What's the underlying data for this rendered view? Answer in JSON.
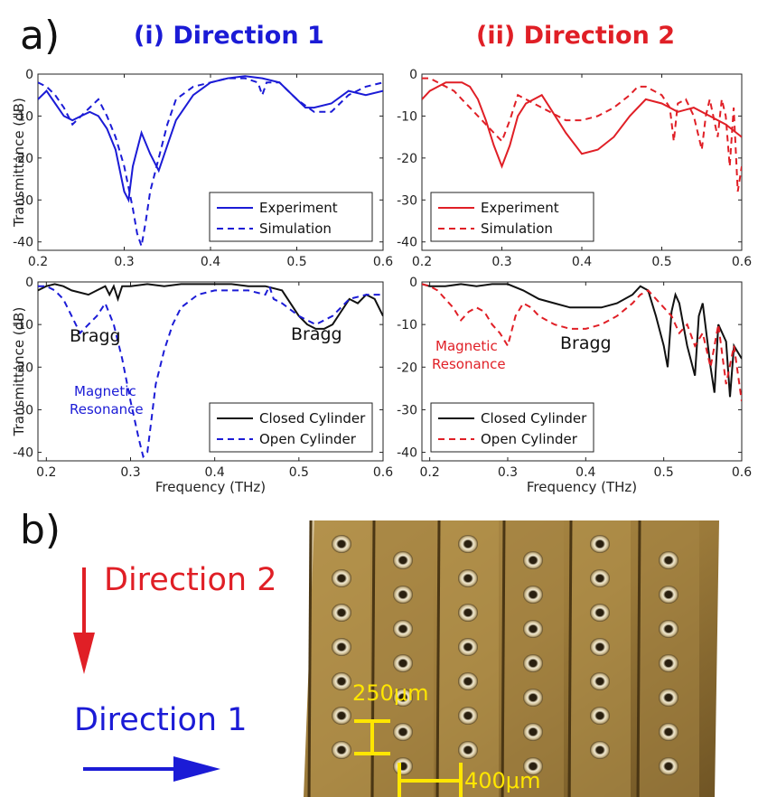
{
  "panel_a_label": "a)",
  "panel_b_label": "b)",
  "column_titles": {
    "left": "(i) Direction 1",
    "right": "(ii) Direction 2"
  },
  "colors": {
    "blue": "#1b1bd6",
    "red": "#e01f26",
    "black": "#111111",
    "yellow": "#ffe600"
  },
  "photo_annotations": {
    "direction2": "Direction 2",
    "direction1": "Direction 1",
    "scale_vertical": "250μm",
    "scale_horizontal": "400μm"
  },
  "chart_data": [
    {
      "id": "top-left",
      "type": "line",
      "ylabel": "Transmittance (dB)",
      "xlabel": "",
      "xlim": [
        0.2,
        0.6
      ],
      "ylim": [
        -42,
        0
      ],
      "xticks": [
        "0.2",
        "0.3",
        "0.4",
        "0.5",
        "0.6"
      ],
      "yticks": [
        "0",
        "-10",
        "-20",
        "-30",
        "-40"
      ],
      "legend_position": "lower-right",
      "annotations": [],
      "series": [
        {
          "name": "Experiment",
          "style": "solid",
          "color": "#1b1bd6",
          "x": [
            0.2,
            0.21,
            0.22,
            0.23,
            0.24,
            0.25,
            0.26,
            0.27,
            0.28,
            0.29,
            0.3,
            0.305,
            0.31,
            0.32,
            0.33,
            0.34,
            0.35,
            0.36,
            0.38,
            0.4,
            0.42,
            0.44,
            0.46,
            0.48,
            0.5,
            0.51,
            0.52,
            0.54,
            0.56,
            0.58,
            0.6
          ],
          "y": [
            -6,
            -4,
            -7,
            -10,
            -11,
            -10,
            -9,
            -10,
            -13,
            -18,
            -28,
            -30,
            -22,
            -14,
            -19,
            -23,
            -17,
            -11,
            -5,
            -2,
            -1,
            -0.5,
            -1,
            -2,
            -6,
            -8,
            -8,
            -7,
            -4,
            -5,
            -4
          ]
        },
        {
          "name": "Simulation",
          "style": "dashed",
          "color": "#1b1bd6",
          "x": [
            0.2,
            0.21,
            0.22,
            0.23,
            0.24,
            0.25,
            0.26,
            0.27,
            0.28,
            0.29,
            0.3,
            0.31,
            0.315,
            0.32,
            0.325,
            0.33,
            0.34,
            0.35,
            0.36,
            0.38,
            0.4,
            0.42,
            0.44,
            0.455,
            0.46,
            0.465,
            0.48,
            0.5,
            0.52,
            0.54,
            0.56,
            0.58,
            0.6
          ],
          "y": [
            -2,
            -3,
            -5,
            -8,
            -12,
            -10,
            -8,
            -6,
            -10,
            -15,
            -22,
            -32,
            -38,
            -41,
            -35,
            -28,
            -20,
            -12,
            -6,
            -3,
            -2,
            -1,
            -1,
            -2,
            -5,
            -2,
            -2,
            -6,
            -9,
            -9,
            -5,
            -3,
            -2
          ]
        }
      ]
    },
    {
      "id": "top-right",
      "type": "line",
      "ylabel": "",
      "xlabel": "",
      "xlim": [
        0.2,
        0.6
      ],
      "ylim": [
        -42,
        0
      ],
      "xticks": [
        "0.2",
        "0.3",
        "0.4",
        "0.5",
        "0.6"
      ],
      "yticks": [
        "0",
        "-10",
        "-20",
        "-30",
        "-40"
      ],
      "legend_position": "lower-left",
      "annotations": [],
      "series": [
        {
          "name": "Experiment",
          "style": "solid",
          "color": "#e01f26",
          "x": [
            0.2,
            0.21,
            0.22,
            0.23,
            0.24,
            0.25,
            0.26,
            0.27,
            0.28,
            0.29,
            0.3,
            0.31,
            0.32,
            0.33,
            0.34,
            0.35,
            0.36,
            0.38,
            0.4,
            0.42,
            0.44,
            0.46,
            0.48,
            0.5,
            0.51,
            0.52,
            0.54,
            0.56,
            0.58,
            0.6
          ],
          "y": [
            -6,
            -4,
            -3,
            -2,
            -2,
            -2,
            -3,
            -6,
            -11,
            -17,
            -22,
            -17,
            -10,
            -7,
            -6,
            -5,
            -8,
            -14,
            -19,
            -18,
            -15,
            -10,
            -6,
            -7,
            -8,
            -9,
            -8,
            -10,
            -12,
            -15
          ]
        },
        {
          "name": "Simulation",
          "style": "dashed",
          "color": "#e01f26",
          "x": [
            0.2,
            0.21,
            0.22,
            0.23,
            0.24,
            0.25,
            0.26,
            0.27,
            0.28,
            0.29,
            0.3,
            0.31,
            0.32,
            0.33,
            0.34,
            0.36,
            0.38,
            0.4,
            0.42,
            0.44,
            0.46,
            0.47,
            0.48,
            0.5,
            0.51,
            0.515,
            0.52,
            0.53,
            0.54,
            0.55,
            0.555,
            0.56,
            0.57,
            0.575,
            0.58,
            0.585,
            0.59,
            0.595,
            0.6
          ],
          "y": [
            -1,
            -1,
            -2,
            -3,
            -4,
            -6,
            -8,
            -10,
            -12,
            -14,
            -16,
            -11,
            -5,
            -6,
            -7,
            -9,
            -11,
            -11,
            -10,
            -8,
            -5,
            -3,
            -3,
            -5,
            -8,
            -16,
            -7,
            -6,
            -10,
            -18,
            -10,
            -6,
            -15,
            -6,
            -10,
            -22,
            -8,
            -28,
            -22
          ]
        }
      ]
    },
    {
      "id": "bottom-left",
      "type": "line",
      "ylabel": "Transmittance (dB)",
      "xlabel": "Frequency (THz)",
      "xlim": [
        0.19,
        0.6
      ],
      "ylim": [
        -42,
        0
      ],
      "xticks": [
        "0.2",
        "0.3",
        "0.4",
        "0.5",
        "0.6"
      ],
      "yticks": [
        "0",
        "-10",
        "-20",
        "-30",
        "-40"
      ],
      "legend_position": "lower-right",
      "annotations": [
        "Bragg",
        "Bragg",
        "Magnetic",
        "Resonance"
      ],
      "series": [
        {
          "name": "Closed Cylinder",
          "style": "solid",
          "color": "#111111",
          "x": [
            0.19,
            0.2,
            0.21,
            0.22,
            0.23,
            0.25,
            0.26,
            0.27,
            0.275,
            0.28,
            0.285,
            0.29,
            0.3,
            0.32,
            0.34,
            0.36,
            0.38,
            0.4,
            0.42,
            0.44,
            0.46,
            0.48,
            0.49,
            0.5,
            0.51,
            0.52,
            0.53,
            0.54,
            0.55,
            0.56,
            0.57,
            0.58,
            0.59,
            0.6
          ],
          "y": [
            -2,
            -1,
            -0.5,
            -1,
            -2,
            -3,
            -2,
            -1,
            -3,
            -1,
            -4,
            -1,
            -1,
            -0.5,
            -1,
            -0.5,
            -0.5,
            -0.5,
            -0.5,
            -1,
            -1,
            -2,
            -5,
            -8,
            -10,
            -11,
            -11,
            -10,
            -7,
            -4,
            -5,
            -3,
            -4,
            -8
          ]
        },
        {
          "name": "Open Cylinder",
          "style": "dashed",
          "color": "#1b1bd6",
          "x": [
            0.19,
            0.2,
            0.21,
            0.22,
            0.23,
            0.24,
            0.25,
            0.26,
            0.27,
            0.28,
            0.29,
            0.3,
            0.31,
            0.315,
            0.32,
            0.325,
            0.33,
            0.34,
            0.35,
            0.36,
            0.38,
            0.4,
            0.42,
            0.44,
            0.46,
            0.465,
            0.47,
            0.48,
            0.5,
            0.52,
            0.54,
            0.56,
            0.58,
            0.6
          ],
          "y": [
            -1,
            -1,
            -2,
            -4,
            -8,
            -12,
            -10,
            -8,
            -5,
            -10,
            -18,
            -28,
            -37,
            -41,
            -40,
            -32,
            -24,
            -16,
            -10,
            -6,
            -3,
            -2,
            -2,
            -2,
            -3,
            -1,
            -4,
            -5,
            -8,
            -10,
            -8,
            -4,
            -3,
            -3
          ]
        }
      ]
    },
    {
      "id": "bottom-right",
      "type": "line",
      "ylabel": "",
      "xlabel": "Frequency (THz)",
      "xlim": [
        0.19,
        0.6
      ],
      "ylim": [
        -42,
        0
      ],
      "xticks": [
        "0.2",
        "0.3",
        "0.4",
        "0.5",
        "0.6"
      ],
      "yticks": [
        "0",
        "-10",
        "-20",
        "-30",
        "-40"
      ],
      "legend_position": "lower-left",
      "annotations": [
        "Magnetic",
        "Resonance",
        "Bragg"
      ],
      "series": [
        {
          "name": "Closed Cylinder",
          "style": "solid",
          "color": "#111111",
          "x": [
            0.19,
            0.2,
            0.22,
            0.24,
            0.26,
            0.28,
            0.3,
            0.32,
            0.34,
            0.36,
            0.38,
            0.4,
            0.42,
            0.44,
            0.46,
            0.47,
            0.48,
            0.49,
            0.5,
            0.505,
            0.51,
            0.515,
            0.52,
            0.53,
            0.54,
            0.545,
            0.55,
            0.56,
            0.565,
            0.57,
            0.58,
            0.585,
            0.59,
            0.6
          ],
          "y": [
            -0.5,
            -1,
            -1,
            -0.5,
            -1,
            -0.5,
            -0.5,
            -2,
            -4,
            -5,
            -6,
            -6,
            -6,
            -5,
            -3,
            -1,
            -2,
            -8,
            -15,
            -20,
            -7,
            -3,
            -5,
            -15,
            -22,
            -8,
            -5,
            -20,
            -26,
            -10,
            -14,
            -27,
            -15,
            -18
          ]
        },
        {
          "name": "Open Cylinder",
          "style": "dashed",
          "color": "#e01f26",
          "x": [
            0.19,
            0.2,
            0.21,
            0.22,
            0.23,
            0.24,
            0.25,
            0.26,
            0.27,
            0.28,
            0.29,
            0.3,
            0.31,
            0.32,
            0.33,
            0.34,
            0.36,
            0.38,
            0.4,
            0.42,
            0.44,
            0.46,
            0.47,
            0.48,
            0.5,
            0.51,
            0.52,
            0.53,
            0.54,
            0.55,
            0.56,
            0.57,
            0.58,
            0.59,
            0.6
          ],
          "y": [
            -0.5,
            -1,
            -2,
            -4,
            -6,
            -9,
            -7,
            -6,
            -7,
            -10,
            -12,
            -15,
            -8,
            -5,
            -6,
            -8,
            -10,
            -11,
            -11,
            -10,
            -8,
            -5,
            -3,
            -2,
            -6,
            -8,
            -12,
            -10,
            -15,
            -12,
            -20,
            -10,
            -24,
            -15,
            -28
          ]
        }
      ]
    }
  ]
}
